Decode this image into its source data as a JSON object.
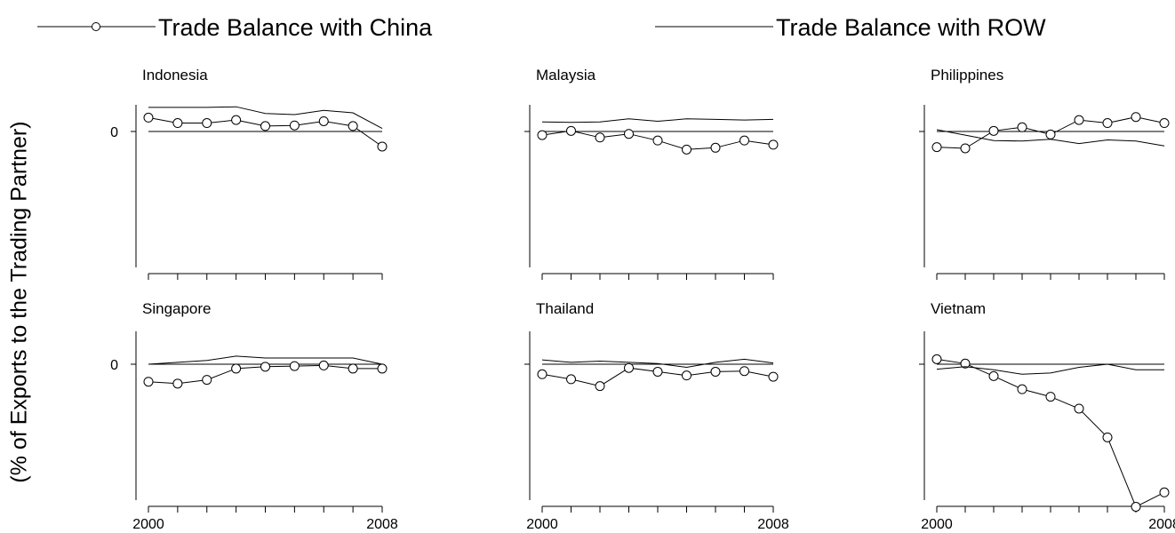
{
  "legend": [
    {
      "label": "Trade Balance with China",
      "marker": "circle"
    },
    {
      "label": "Trade Balance with ROW",
      "marker": "none"
    }
  ],
  "y_axis_label": "(% of Exports to the Trading Partner)",
  "chart_data": {
    "type": "line",
    "x_tick_labels": [
      "2000",
      "2008"
    ],
    "y_tick_label": "0",
    "x": [
      2000,
      2001,
      2002,
      2003,
      2004,
      2005,
      2006,
      2007,
      2008
    ],
    "panels": [
      {
        "title": "Indonesia",
        "ylim": [
          -2.3,
          0.4
        ],
        "series": [
          {
            "name": "Trade Balance with China",
            "values": [
              0.23,
              0.14,
              0.14,
              0.19,
              0.09,
              0.1,
              0.17,
              0.09,
              -0.25
            ]
          },
          {
            "name": "Trade Balance with ROW",
            "values": [
              0.4,
              0.4,
              0.4,
              0.41,
              0.3,
              0.28,
              0.35,
              0.31,
              0.05
            ]
          }
        ]
      },
      {
        "title": "Malaysia",
        "ylim": [
          -2.3,
          0.4
        ],
        "series": [
          {
            "name": "Trade Balance with China",
            "values": [
              -0.06,
              0.01,
              -0.1,
              -0.04,
              -0.15,
              -0.3,
              -0.27,
              -0.15,
              -0.22
            ]
          },
          {
            "name": "Trade Balance with ROW",
            "values": [
              0.16,
              0.15,
              0.16,
              0.21,
              0.17,
              0.21,
              0.2,
              0.19,
              0.2
            ]
          }
        ]
      },
      {
        "title": "Philippines",
        "ylim": [
          -2.3,
          0.4
        ],
        "series": [
          {
            "name": "Trade Balance with China",
            "values": [
              -0.26,
              -0.28,
              0.01,
              0.07,
              -0.05,
              0.19,
              0.14,
              0.24,
              0.14
            ]
          },
          {
            "name": "Trade Balance with ROW",
            "values": [
              0.03,
              -0.06,
              -0.15,
              -0.16,
              -0.13,
              -0.2,
              -0.14,
              -0.16,
              -0.24
            ]
          }
        ]
      },
      {
        "title": "Singapore",
        "ylim": [
          -2.3,
          0.4
        ],
        "series": [
          {
            "name": "Trade Balance with China",
            "values": [
              -0.28,
              -0.31,
              -0.25,
              -0.07,
              -0.04,
              -0.03,
              -0.02,
              -0.07,
              -0.07
            ]
          },
          {
            "name": "Trade Balance with ROW",
            "values": [
              0.0,
              0.03,
              0.06,
              0.13,
              0.1,
              0.1,
              0.1,
              0.1,
              0.0
            ]
          }
        ]
      },
      {
        "title": "Thailand",
        "ylim": [
          -2.3,
          0.4
        ],
        "series": [
          {
            "name": "Trade Balance with China",
            "values": [
              -0.16,
              -0.24,
              -0.35,
              -0.06,
              -0.12,
              -0.18,
              -0.12,
              -0.11,
              -0.2
            ]
          },
          {
            "name": "Trade Balance with ROW",
            "values": [
              0.07,
              0.03,
              0.05,
              0.03,
              0.01,
              -0.05,
              0.03,
              0.08,
              0.02
            ]
          }
        ]
      },
      {
        "title": "Vietnam",
        "ylim": [
          -2.3,
          0.4
        ],
        "series": [
          {
            "name": "Trade Balance with China",
            "values": [
              0.08,
              0.01,
              -0.19,
              -0.4,
              -0.52,
              -0.71,
              -1.17,
              -2.28,
              -2.05
            ]
          },
          {
            "name": "Trade Balance with ROW",
            "values": [
              -0.08,
              -0.04,
              -0.09,
              -0.16,
              -0.14,
              -0.05,
              0.0,
              -0.09,
              -0.09
            ]
          }
        ]
      }
    ]
  }
}
